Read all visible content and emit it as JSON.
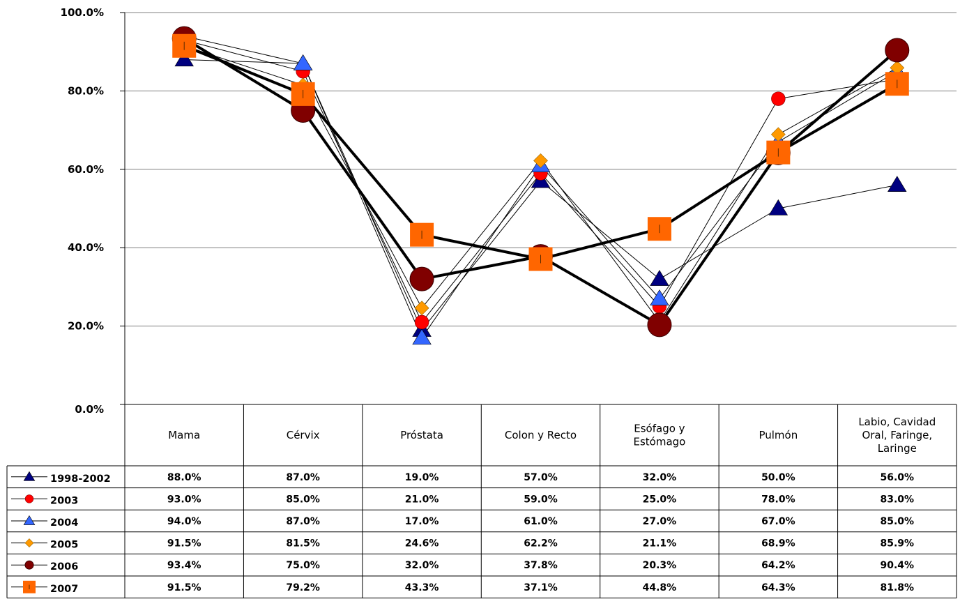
{
  "chart_data": {
    "type": "line",
    "categories": [
      "Mama",
      "Cérvix",
      "Próstata",
      "Colon y Recto",
      "Esófago y Estómago",
      "Pulmón",
      "Labio, Cavidad Oral, Faringe, Laringe"
    ],
    "category_lines": [
      [
        "Mama"
      ],
      [
        "Cérvix"
      ],
      [
        "Próstata"
      ],
      [
        "Colon y Recto"
      ],
      [
        "Esófago y",
        "Estómago"
      ],
      [
        "Pulmón"
      ],
      [
        "Labio, Cavidad",
        "Oral, Faringe,",
        "Laringe"
      ]
    ],
    "yticks": [
      "0.0%",
      "20.0%",
      "40.0%",
      "60.0%",
      "80.0%",
      "100.0%"
    ],
    "ylim": [
      0,
      100
    ],
    "grid": true,
    "legend": "data-table",
    "series": [
      {
        "name": "1998-2002",
        "marker": "triangle",
        "color": "#000080",
        "line": "thin",
        "values": [
          88.0,
          87.0,
          19.0,
          57.0,
          32.0,
          50.0,
          56.0
        ],
        "labels": [
          "88.0%",
          "87.0%",
          "19.0%",
          "57.0%",
          "32.0%",
          "50.0%",
          "56.0%"
        ]
      },
      {
        "name": "2003",
        "marker": "circle",
        "color": "#ff0000",
        "line": "thin",
        "values": [
          93.0,
          85.0,
          21.0,
          59.0,
          25.0,
          78.0,
          83.0
        ],
        "labels": [
          "93.0%",
          "85.0%",
          "21.0%",
          "59.0%",
          "25.0%",
          "78.0%",
          "83.0%"
        ]
      },
      {
        "name": "2004",
        "marker": "triangle",
        "color": "#3366ff",
        "line": "thin",
        "values": [
          94.0,
          87.0,
          17.0,
          61.0,
          27.0,
          67.0,
          85.0
        ],
        "labels": [
          "94.0%",
          "87.0%",
          "17.0%",
          "61.0%",
          "27.0%",
          "67.0%",
          "85.0%"
        ]
      },
      {
        "name": "2005",
        "marker": "diamond",
        "color": "#ff9900",
        "line": "thin",
        "values": [
          91.5,
          81.5,
          24.6,
          62.2,
          21.1,
          68.9,
          85.9
        ],
        "labels": [
          "91.5%",
          "81.5%",
          "24.6%",
          "62.2%",
          "21.1%",
          "68.9%",
          "85.9%"
        ]
      },
      {
        "name": "2006",
        "marker": "bigcircle",
        "color": "#800000",
        "line": "thick",
        "values": [
          93.4,
          75.0,
          32.0,
          37.8,
          20.3,
          64.2,
          90.4
        ],
        "labels": [
          "93.4%",
          "75.0%",
          "32.0%",
          "37.8%",
          "20.3%",
          "64.2%",
          "90.4%"
        ]
      },
      {
        "name": "2007",
        "marker": "square",
        "color": "#ff6600",
        "line": "thick",
        "values": [
          91.5,
          79.2,
          43.3,
          37.1,
          44.8,
          64.3,
          81.8
        ],
        "labels": [
          "91.5%",
          "79.2%",
          "43.3%",
          "37.1%",
          "44.8%",
          "64.3%",
          "81.8%"
        ]
      }
    ]
  }
}
